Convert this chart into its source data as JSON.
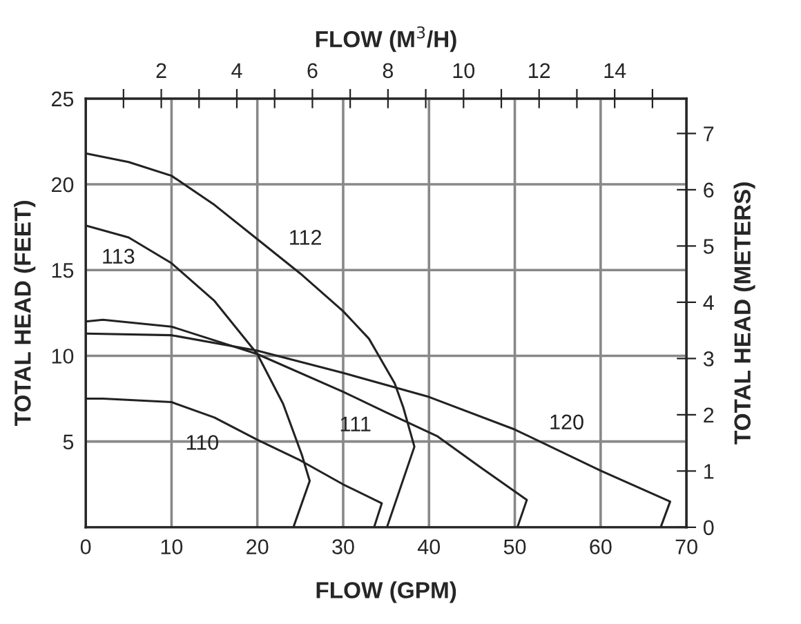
{
  "chart_data": {
    "type": "line",
    "xlabel": "FLOW (GPM)",
    "ylabel": "TOTAL HEAD (FEET)",
    "y2label": "TOTAL HEAD (METERS)",
    "x2label": "FLOW (M$^{3}$/H)",
    "xlim": [
      0,
      70
    ],
    "xticks": [
      0,
      10,
      20,
      30,
      40,
      50,
      60,
      70
    ],
    "ylim": [
      0,
      25
    ],
    "yticks": [
      5,
      10,
      15,
      20,
      25
    ],
    "y2lim": [
      0,
      7.62
    ],
    "y2ticks": [
      0,
      1,
      2,
      3,
      4,
      5,
      6,
      7
    ],
    "x2lim": [
      0,
      15.9
    ],
    "x2ticks": [
      {
        "value": 1,
        "label": null
      },
      2,
      {
        "value": 3,
        "label": null
      },
      4,
      {
        "value": 5,
        "label": null
      },
      6,
      {
        "value": 7,
        "label": null
      },
      8,
      {
        "value": 9,
        "label": null
      },
      10,
      {
        "value": 11,
        "label": null
      },
      12,
      {
        "value": 13,
        "label": null
      },
      14,
      {
        "value": 15,
        "label": null
      }
    ],
    "grid": true,
    "marker": "none",
    "line_style": "solid",
    "legend": false,
    "series": [
      {
        "name": "112",
        "color": "#222222",
        "x": [
          0,
          5,
          10,
          15,
          20,
          25,
          30,
          33,
          36,
          37,
          38.3,
          35.1
        ],
        "values": [
          21.8,
          21.3,
          20.5,
          18.8,
          16.8,
          14.8,
          12.6,
          11,
          8.4,
          7,
          4.7,
          0
        ]
      },
      {
        "name": "113",
        "color": "#222222",
        "x": [
          0,
          5,
          10,
          15,
          20,
          23,
          25.2,
          26.1,
          24.2
        ],
        "values": [
          17.6,
          16.9,
          15.4,
          13.2,
          10.1,
          7.2,
          4.2,
          2.7,
          0
        ]
      },
      {
        "name": "111",
        "color": "#222222",
        "x": [
          0,
          2,
          10,
          20,
          30,
          35,
          41,
          46,
          51.4,
          50.3
        ],
        "values": [
          12,
          12.1,
          11.7,
          10.1,
          7.9,
          6.7,
          5.3,
          3.5,
          1.6,
          0
        ]
      },
      {
        "name": "120",
        "color": "#222222",
        "x": [
          0,
          10,
          20,
          30,
          40,
          50,
          60,
          68.1,
          67
        ],
        "values": [
          11.3,
          11.2,
          10.3,
          9.0,
          7.6,
          5.7,
          3.3,
          1.5,
          0
        ]
      },
      {
        "name": "110",
        "color": "#222222",
        "x": [
          0,
          2,
          10,
          15,
          20,
          25,
          30,
          34.5,
          33.6
        ],
        "values": [
          7.5,
          7.5,
          7.3,
          6.4,
          5.1,
          3.9,
          2.5,
          1.4,
          0
        ]
      }
    ]
  }
}
